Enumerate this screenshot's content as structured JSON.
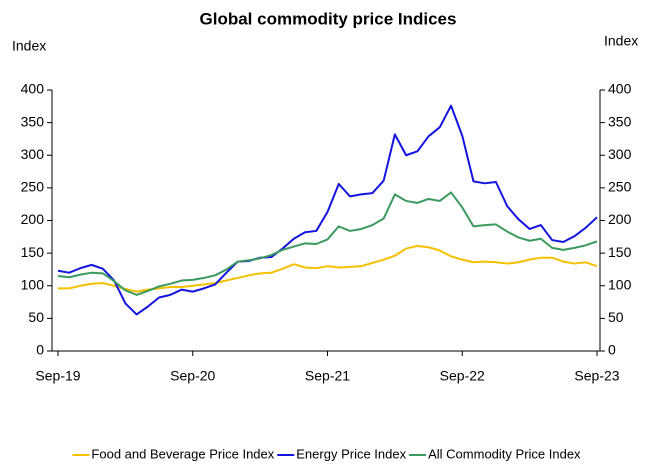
{
  "chart_data": {
    "type": "line",
    "title": "Global commodity price Indices",
    "y_label": "Index",
    "y2_label": "Index",
    "categories": [
      "Sep-19",
      null,
      null,
      null,
      null,
      null,
      null,
      null,
      null,
      null,
      null,
      null,
      "Sep-20",
      null,
      null,
      null,
      null,
      null,
      null,
      null,
      null,
      null,
      null,
      null,
      "Sep-21",
      null,
      null,
      null,
      null,
      null,
      null,
      null,
      null,
      null,
      null,
      null,
      "Sep-22",
      null,
      null,
      null,
      null,
      null,
      null,
      null,
      null,
      null,
      null,
      null,
      "Sep-23"
    ],
    "series": [
      {
        "name": "Food and Beverage Price Index",
        "color": "#f5c000",
        "values": [
          96,
          96,
          100,
          103,
          104,
          100,
          95,
          91,
          94,
          96,
          98,
          98,
          100,
          102,
          104,
          108,
          112,
          116,
          119,
          120,
          126,
          133,
          128,
          127,
          130,
          128,
          129,
          130,
          135,
          140,
          146,
          157,
          161,
          159,
          154,
          145,
          140,
          136,
          137,
          136,
          134,
          136,
          140,
          143,
          143,
          137,
          134,
          136,
          130
        ]
      },
      {
        "name": "Energy Price Index",
        "color": "#1414e0",
        "values": [
          123,
          120,
          127,
          132,
          126,
          108,
          73,
          56,
          68,
          82,
          86,
          94,
          91,
          96,
          102,
          120,
          137,
          138,
          143,
          144,
          157,
          172,
          182,
          184,
          213,
          256,
          237,
          240,
          242,
          261,
          332,
          300,
          306,
          329,
          343,
          376,
          330,
          260,
          257,
          259,
          222,
          202,
          187,
          193,
          170,
          167,
          176,
          189,
          205
        ]
      },
      {
        "name": "All Commodity Price Index",
        "color": "#3a9a5e",
        "values": [
          115,
          113,
          117,
          120,
          119,
          107,
          93,
          86,
          92,
          99,
          103,
          108,
          109,
          112,
          116,
          125,
          137,
          139,
          142,
          147,
          155,
          160,
          165,
          164,
          171,
          191,
          184,
          187,
          193,
          203,
          240,
          230,
          227,
          233,
          230,
          243,
          220,
          191,
          193,
          194,
          183,
          174,
          169,
          172,
          158,
          155,
          158,
          162,
          168
        ]
      }
    ],
    "ylim": [
      0,
      400
    ],
    "yticks": [
      0,
      50,
      100,
      150,
      200,
      250,
      300,
      350,
      400
    ],
    "y2lim": [
      0,
      400
    ],
    "y2ticks": [
      0,
      50,
      100,
      150,
      200,
      250,
      300,
      350,
      400
    ],
    "legend": "bottom"
  }
}
